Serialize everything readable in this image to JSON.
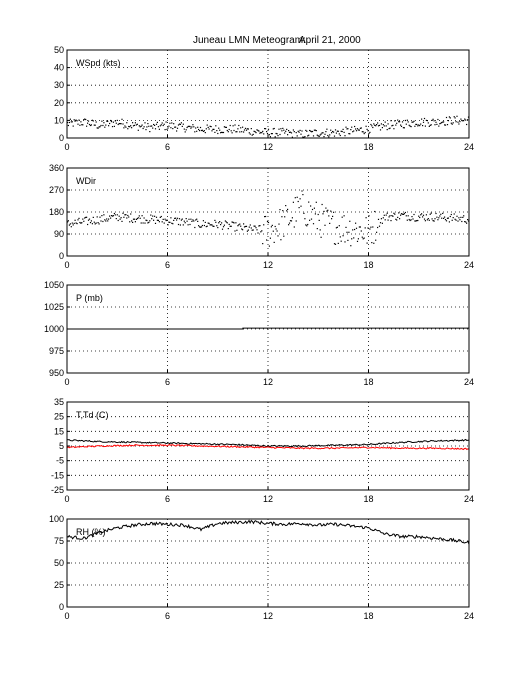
{
  "figure": {
    "title": "Juneau LMN Meteogram:",
    "date": "April 21, 2000"
  },
  "chart_data": [
    {
      "type": "scatter",
      "label": "WSpd (kts)",
      "xlim": [
        0,
        24
      ],
      "ylim": [
        0,
        50
      ],
      "xticks": [
        0,
        6,
        12,
        18,
        24
      ],
      "yticks": [
        0,
        10,
        20,
        30,
        40,
        50
      ],
      "grid": true,
      "series": [
        {
          "style": "dots",
          "color": "#000000",
          "x": [
            0,
            1,
            2,
            3,
            4,
            5,
            6,
            7,
            8,
            9,
            10,
            11,
            12,
            13,
            14,
            15,
            16,
            17,
            18,
            19,
            20,
            21,
            22,
            23,
            24
          ],
          "values": [
            8,
            9,
            7,
            9,
            7,
            6,
            7,
            6,
            5,
            5,
            5,
            4,
            3,
            3,
            2,
            3,
            3,
            4,
            5,
            7,
            8,
            9,
            9,
            10,
            10
          ]
        }
      ]
    },
    {
      "type": "scatter",
      "label": "WDir",
      "xlim": [
        0,
        24
      ],
      "ylim": [
        0,
        360
      ],
      "xticks": [
        0,
        6,
        12,
        18,
        24
      ],
      "yticks": [
        0,
        90,
        180,
        270,
        360
      ],
      "grid": true,
      "series": [
        {
          "style": "dots",
          "color": "#000000",
          "x": [
            0,
            1,
            2,
            3,
            4,
            5,
            6,
            7,
            8,
            9,
            10,
            11,
            12,
            13,
            14,
            15,
            16,
            17,
            18,
            19,
            20,
            21,
            22,
            23,
            24
          ],
          "values": [
            130,
            140,
            150,
            160,
            155,
            150,
            145,
            140,
            130,
            130,
            120,
            110,
            100,
            140,
            200,
            150,
            120,
            110,
            100,
            160,
            165,
            160,
            160,
            155,
            150
          ]
        }
      ]
    },
    {
      "type": "line",
      "label": "P (mb)",
      "xlim": [
        0,
        24
      ],
      "ylim": [
        950,
        1050
      ],
      "xticks": [
        0,
        6,
        12,
        18,
        24
      ],
      "yticks": [
        950,
        975,
        1000,
        1025,
        1050
      ],
      "grid": true,
      "series": [
        {
          "style": "line",
          "color": "#000000",
          "x": [
            0,
            10.5,
            10.5,
            24
          ],
          "values": [
            1000,
            1000,
            1001,
            1001
          ]
        }
      ]
    },
    {
      "type": "line",
      "label": "T,Td (C)",
      "xlim": [
        0,
        24
      ],
      "ylim": [
        -25,
        35
      ],
      "xticks": [
        0,
        6,
        12,
        18,
        24
      ],
      "yticks": [
        -25,
        -15,
        -5,
        5,
        15,
        25,
        35
      ],
      "grid": true,
      "series": [
        {
          "style": "line",
          "color": "#000000",
          "x": [
            0,
            2,
            4,
            6,
            8,
            10,
            12,
            14,
            16,
            18,
            20,
            22,
            24
          ],
          "values": [
            9,
            8,
            7.5,
            7,
            6.5,
            6,
            5,
            5,
            5.5,
            6,
            7.5,
            8.5,
            9
          ]
        },
        {
          "style": "line",
          "color": "#ff0000",
          "x": [
            0,
            2,
            4,
            6,
            8,
            10,
            12,
            14,
            16,
            18,
            20,
            22,
            24
          ],
          "values": [
            4,
            5,
            5.5,
            5.5,
            5,
            4.5,
            4,
            3.5,
            3.5,
            4,
            3.5,
            3.5,
            3
          ]
        }
      ]
    },
    {
      "type": "line",
      "label": "RH (%)",
      "xlim": [
        0,
        24
      ],
      "ylim": [
        0,
        100
      ],
      "xticks": [
        0,
        6,
        12,
        18,
        24
      ],
      "yticks": [
        0,
        25,
        50,
        75,
        100
      ],
      "grid": true,
      "series": [
        {
          "style": "line",
          "color": "#000000",
          "x": [
            0,
            1,
            2,
            3,
            4,
            5,
            6,
            7,
            8,
            9,
            10,
            11,
            12,
            13,
            14,
            15,
            16,
            17,
            18,
            19,
            20,
            21,
            22,
            23,
            24
          ],
          "values": [
            80,
            78,
            85,
            90,
            93,
            95,
            94,
            93,
            88,
            95,
            96,
            97,
            95,
            94,
            95,
            93,
            94,
            92,
            90,
            83,
            80,
            80,
            78,
            76,
            73
          ]
        }
      ]
    }
  ]
}
